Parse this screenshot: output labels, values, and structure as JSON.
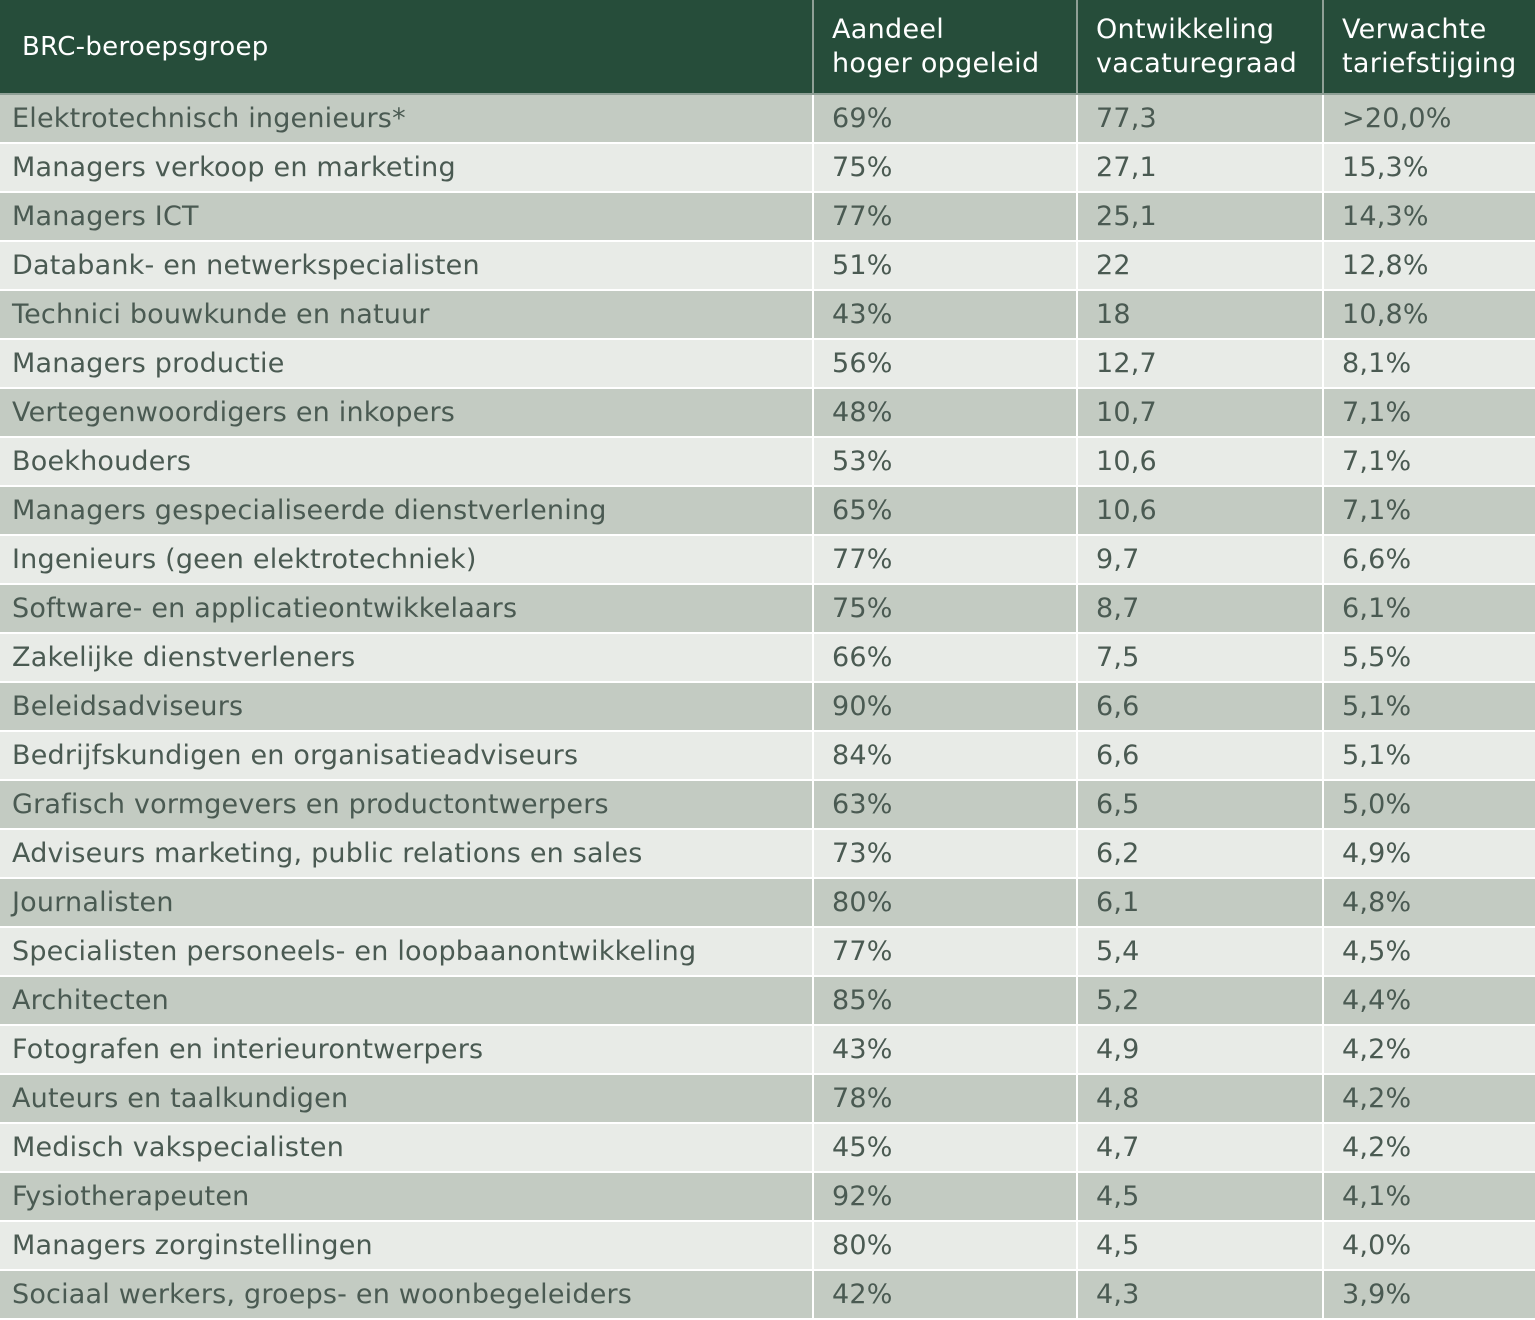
{
  "header": {
    "col1": "BRC-beroepsgroep",
    "col2_line1": "Aandeel",
    "col2_line2": "hoger opgeleid",
    "col3_line1": "Ontwikkeling",
    "col3_line2": "vacaturegraad",
    "col4_line1": "Verwachte",
    "col4_line2": "tariefstijging"
  },
  "rows": [
    [
      "Elektrotechnisch ingenieurs*",
      "69%",
      "77,3",
      ">20,0%"
    ],
    [
      "Managers verkoop en marketing",
      "75%",
      "27,1",
      "15,3%"
    ],
    [
      "Managers ICT",
      "77%",
      "25,1",
      "14,3%"
    ],
    [
      "Databank- en netwerkspecialisten",
      "51%",
      "22",
      "12,8%"
    ],
    [
      "Technici bouwkunde en natuur",
      "43%",
      "18",
      "10,8%"
    ],
    [
      "Managers productie",
      "56%",
      "12,7",
      "8,1%"
    ],
    [
      "Vertegenwoordigers en inkopers",
      "48%",
      "10,7",
      "7,1%"
    ],
    [
      "Boekhouders",
      "53%",
      "10,6",
      "7,1%"
    ],
    [
      "Managers gespecialiseerde dienstverlening",
      "65%",
      "10,6",
      "7,1%"
    ],
    [
      "Ingenieurs (geen elektrotechniek)",
      "77%",
      "9,7",
      "6,6%"
    ],
    [
      "Software- en applicatieontwikkelaars",
      "75%",
      "8,7",
      "6,1%"
    ],
    [
      "Zakelijke dienstverleners",
      "66%",
      "7,5",
      "5,5%"
    ],
    [
      "Beleidsadviseurs",
      "90%",
      "6,6",
      "5,1%"
    ],
    [
      "Bedrijfskundigen en organisatieadviseurs",
      "84%",
      "6,6",
      "5,1%"
    ],
    [
      "Grafisch vormgevers en productontwerpers",
      "63%",
      "6,5",
      "5,0%"
    ],
    [
      "Adviseurs marketing, public relations en sales",
      "73%",
      "6,2",
      "4,9%"
    ],
    [
      "Journalisten",
      "80%",
      "6,1",
      "4,8%"
    ],
    [
      "Specialisten personeels- en loopbaanontwikkeling",
      "77%",
      "5,4",
      "4,5%"
    ],
    [
      "Architecten",
      "85%",
      "5,2",
      "4,4%"
    ],
    [
      "Fotografen en interieurontwerpers",
      "43%",
      "4,9",
      "4,2%"
    ],
    [
      "Auteurs en taalkundigen",
      "78%",
      "4,8",
      "4,2%"
    ],
    [
      "Medisch vakspecialisten",
      "45%",
      "4,7",
      "4,2%"
    ],
    [
      "Fysiotherapeuten",
      "92%",
      "4,5",
      "4,1%"
    ],
    [
      "Managers zorginstellingen",
      "80%",
      "4,5",
      "4,0%"
    ],
    [
      "Sociaal werkers, groeps- en woonbegeleiders",
      "42%",
      "4,3",
      "3,9%"
    ]
  ]
}
